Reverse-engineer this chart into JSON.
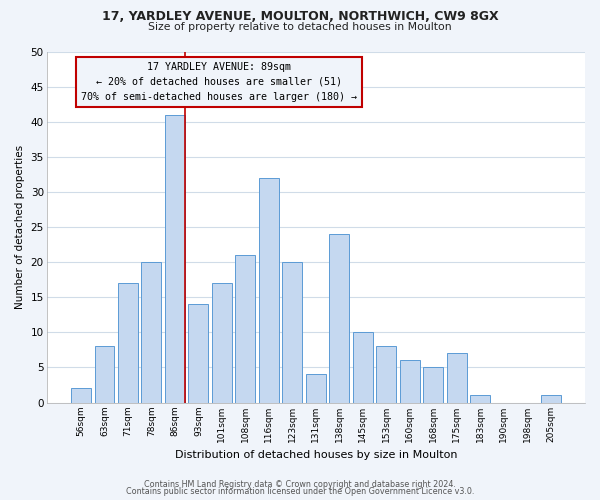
{
  "title": "17, YARDLEY AVENUE, MOULTON, NORTHWICH, CW9 8GX",
  "subtitle": "Size of property relative to detached houses in Moulton",
  "xlabel": "Distribution of detached houses by size in Moulton",
  "ylabel": "Number of detached properties",
  "categories": [
    "56sqm",
    "63sqm",
    "71sqm",
    "78sqm",
    "86sqm",
    "93sqm",
    "101sqm",
    "108sqm",
    "116sqm",
    "123sqm",
    "131sqm",
    "138sqm",
    "145sqm",
    "153sqm",
    "160sqm",
    "168sqm",
    "175sqm",
    "183sqm",
    "190sqm",
    "198sqm",
    "205sqm"
  ],
  "values": [
    2,
    8,
    17,
    20,
    41,
    14,
    17,
    21,
    32,
    20,
    4,
    24,
    10,
    8,
    6,
    5,
    7,
    1,
    0,
    0,
    1
  ],
  "bar_color": "#c5d8f0",
  "bar_edge_color": "#5b9bd5",
  "highlight_bar_index": 4,
  "highlight_line_color": "#c00000",
  "annotation_line1": "17 YARDLEY AVENUE: 89sqm",
  "annotation_line2": "← 20% of detached houses are smaller (51)",
  "annotation_line3": "70% of semi-detached houses are larger (180) →",
  "annotation_box_color": "#c00000",
  "ylim": [
    0,
    50
  ],
  "yticks": [
    0,
    5,
    10,
    15,
    20,
    25,
    30,
    35,
    40,
    45,
    50
  ],
  "footer_line1": "Contains HM Land Registry data © Crown copyright and database right 2024.",
  "footer_line2": "Contains public sector information licensed under the Open Government Licence v3.0.",
  "plot_bg_color": "#ffffff",
  "fig_bg_color": "#f0f4fa",
  "grid_color": "#d0dce8",
  "bar_width": 0.85
}
